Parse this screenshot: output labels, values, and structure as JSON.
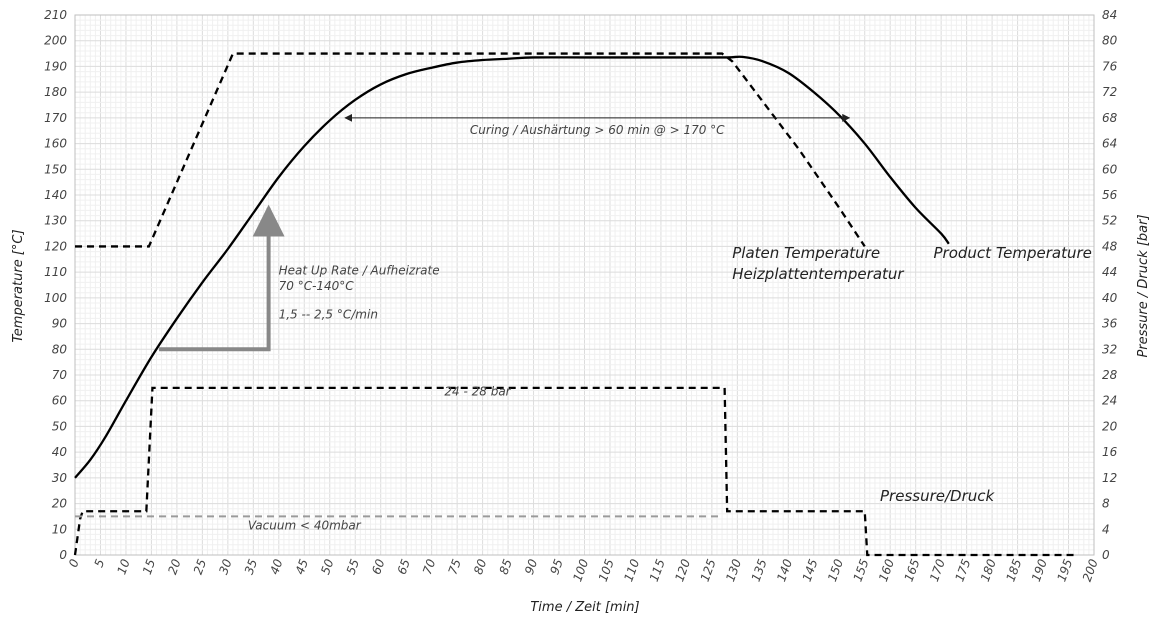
{
  "chart_data": {
    "type": "line",
    "xlabel": "Time / Zeit [min]",
    "ylabel": "Temperature [°C]",
    "y2label": "Pressure / Druck [bar]",
    "xlim": [
      0,
      200
    ],
    "ylim": [
      0,
      210
    ],
    "y2lim": [
      0,
      84
    ],
    "x_ticks": [
      0,
      5,
      10,
      15,
      20,
      25,
      30,
      35,
      40,
      45,
      50,
      55,
      60,
      65,
      70,
      75,
      80,
      85,
      90,
      95,
      100,
      105,
      110,
      115,
      120,
      125,
      130,
      135,
      140,
      145,
      150,
      155,
      160,
      165,
      170,
      175,
      180,
      185,
      190,
      195,
      200
    ],
    "y_ticks": [
      0,
      10,
      20,
      30,
      40,
      50,
      60,
      70,
      80,
      90,
      100,
      110,
      120,
      130,
      140,
      150,
      160,
      170,
      180,
      190,
      200,
      210
    ],
    "y2_ticks": [
      0,
      4,
      8,
      12,
      16,
      20,
      24,
      28,
      32,
      36,
      40,
      44,
      48,
      52,
      56,
      60,
      64,
      68,
      72,
      76,
      80,
      84
    ],
    "grid": true,
    "series": [
      {
        "name": "Product Temperature",
        "axis": "left",
        "style": "solid",
        "color": "#000000",
        "x": [
          0,
          3,
          6,
          10,
          15,
          20,
          25,
          30,
          35,
          40,
          45,
          50,
          55,
          60,
          65,
          70,
          75,
          80,
          85,
          90,
          100,
          110,
          120,
          128,
          131,
          135,
          140,
          145,
          150,
          155,
          160,
          165,
          170,
          171.5
        ],
        "y": [
          30,
          37,
          46,
          60,
          77,
          92,
          106,
          119,
          133,
          147,
          159,
          169,
          177,
          183,
          187,
          189.5,
          191.5,
          192.5,
          193,
          193.5,
          193.5,
          193.5,
          193.5,
          193.5,
          193.7,
          192,
          187.5,
          180,
          171,
          160,
          147,
          135,
          125,
          121
        ]
      },
      {
        "name": "Platen Temperature",
        "name2": "Heizplattentemperatur",
        "axis": "left",
        "style": "dashed",
        "color": "#000000",
        "x": [
          0,
          14.5,
          31,
          127,
          129,
          142,
          150,
          155
        ],
        "y": [
          120,
          120,
          195,
          195,
          192,
          158,
          135,
          120
        ]
      },
      {
        "name": "Pressure/Druck",
        "axis": "right",
        "style": "dashed",
        "color": "#000000",
        "x": [
          0,
          1,
          1.5,
          14,
          15.2,
          127.5,
          128,
          155,
          155.5,
          196
        ],
        "y": [
          0,
          5.6,
          6.8,
          6.8,
          26,
          26,
          6.8,
          6.8,
          0,
          0
        ]
      },
      {
        "name": "Vacuum < 40mbar",
        "axis": "left",
        "style": "dashed",
        "color": "#9a9a9a",
        "x": [
          0,
          127
        ],
        "y": [
          15,
          15
        ]
      }
    ],
    "annotations": {
      "curing": {
        "text": "Curing / Aushärtung > 60 min @ > 170 °C",
        "x1": 53,
        "x2": 152,
        "y": 170
      },
      "heatup": {
        "line1": "Heat Up Rate / Aufheizrate",
        "line2": "70 °C-140°C",
        "line3": "1,5 -- 2,5 °C/min",
        "x0": 16.5,
        "y0": 80,
        "x1": 38,
        "y1": 135
      },
      "pressure_range": {
        "text": "24 - 28 bar",
        "x": 79,
        "y": 62
      },
      "vacuum": {
        "text": "Vacuum < 40mbar",
        "x": 45,
        "y": 10
      },
      "platen_label": {
        "line1": "Platen Temperature",
        "line2": "Heizplattentemperatur",
        "x": 129,
        "y": 117
      },
      "product_label": {
        "text": "Product Temperature",
        "x": 168.5,
        "y": 117
      },
      "pressure_label": {
        "text": "Pressure/Druck",
        "x": 158,
        "y": 21
      }
    }
  }
}
